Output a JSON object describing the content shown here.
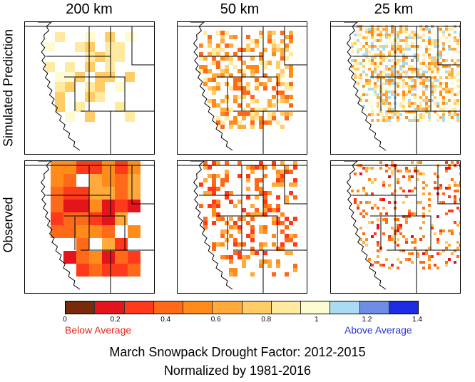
{
  "columns": [
    "200 km",
    "50 km",
    "25 km"
  ],
  "rows": [
    "Simulated Prediction",
    "Observed"
  ],
  "legend": {
    "colors": [
      "#7a2a0a",
      "#e4141c",
      "#ff3a1a",
      "#ff6a1a",
      "#ff8c1a",
      "#ffaa3a",
      "#ffcc66",
      "#ffeaa0",
      "#fffbd0",
      "#a9dcf2",
      "#6e8ee6",
      "#1c2be4"
    ],
    "ticks": [
      "0",
      "0.2",
      "0.4",
      "0.6",
      "0.8",
      "1",
      "1.2",
      "1.4"
    ],
    "below_label": "Below Average",
    "above_label": "Above Average"
  },
  "caption": {
    "line1": "March Snowpack Drought Factor: 2012-2015",
    "line2": "Normalized by 1981-2016"
  }
}
